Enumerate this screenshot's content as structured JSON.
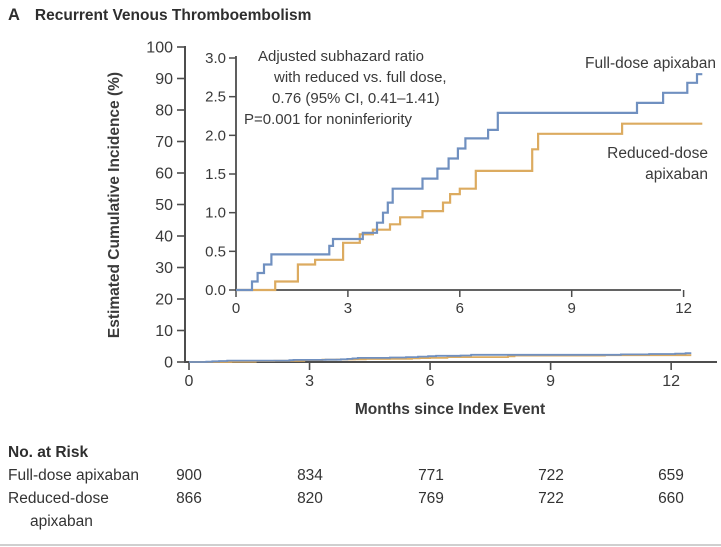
{
  "title": {
    "panel_label": "A",
    "text": "Recurrent Venous Thromboembolism"
  },
  "colors": {
    "full_dose": "#7090c0",
    "reduced_dose": "#dcab60",
    "axis": "#4d4d4d",
    "text": "#3a3a3a"
  },
  "annotation": {
    "line1": "Adjusted subhazard ratio",
    "line2": "with reduced vs. full dose,",
    "line3": "0.76 (95% CI, 0.41–1.41)",
    "line4": "P=0.001 for noninferiority"
  },
  "legend": {
    "full_dose": "Full-dose apixaban",
    "reduced_dose_line1": "Reduced-dose",
    "reduced_dose_line2": "apixaban"
  },
  "chart_data": {
    "type": "line",
    "step": true,
    "title": "Recurrent Venous Thromboembolism",
    "xlabel": "Months since Index Event",
    "ylabel": "Estimated Cumulative Incidence (%)",
    "end_month": 12.5,
    "main_axis": {
      "xlim": [
        0,
        13.2
      ],
      "ylim": [
        0,
        100
      ],
      "xticks": [
        0,
        3,
        6,
        9,
        12
      ],
      "yticks": [
        0,
        10,
        20,
        30,
        40,
        50,
        60,
        70,
        80,
        90,
        100
      ]
    },
    "inset_axis": {
      "xlim": [
        0,
        12.6
      ],
      "ylim": [
        0,
        3.0
      ],
      "xticks": [
        0,
        3,
        6,
        9,
        12
      ],
      "ytick_labels": [
        "0.0",
        "0.5",
        "1.0",
        "1.5",
        "2.0",
        "2.5",
        "3.0"
      ]
    },
    "series": [
      {
        "name": "Full-dose apixaban",
        "color_key": "full_dose",
        "points": [
          [
            0,
            0
          ],
          [
            0.43,
            0.11
          ],
          [
            0.58,
            0.22
          ],
          [
            0.75,
            0.33
          ],
          [
            0.95,
            0.46
          ],
          [
            2.5,
            0.57
          ],
          [
            2.6,
            0.66
          ],
          [
            3.4,
            0.74
          ],
          [
            3.78,
            0.87
          ],
          [
            3.94,
            1.0
          ],
          [
            4.07,
            1.13
          ],
          [
            4.2,
            1.31
          ],
          [
            5.0,
            1.44
          ],
          [
            5.4,
            1.57
          ],
          [
            5.7,
            1.7
          ],
          [
            5.95,
            1.83
          ],
          [
            6.15,
            1.96
          ],
          [
            6.76,
            2.07
          ],
          [
            7.02,
            2.29
          ],
          [
            10.75,
            2.42
          ],
          [
            11.45,
            2.55
          ],
          [
            12.1,
            2.68
          ],
          [
            12.36,
            2.79
          ]
        ]
      },
      {
        "name": "Reduced-dose apixaban",
        "color_key": "reduced_dose",
        "points": [
          [
            0,
            0
          ],
          [
            1.05,
            0.11
          ],
          [
            1.66,
            0.33
          ],
          [
            2.12,
            0.39
          ],
          [
            2.87,
            0.61
          ],
          [
            3.32,
            0.72
          ],
          [
            3.67,
            0.78
          ],
          [
            4.13,
            0.85
          ],
          [
            4.4,
            0.94
          ],
          [
            5.0,
            1.02
          ],
          [
            5.55,
            1.13
          ],
          [
            5.74,
            1.24
          ],
          [
            6.0,
            1.31
          ],
          [
            6.43,
            1.54
          ],
          [
            7.94,
            1.82
          ],
          [
            8.1,
            2.02
          ],
          [
            10.35,
            2.15
          ]
        ]
      }
    ]
  },
  "risk_table": {
    "title": "No. at Risk",
    "timepoints": [
      0,
      3,
      6,
      9,
      12
    ],
    "rows": [
      {
        "label": "Full-dose apixaban",
        "label_line1": "Full-dose apixaban",
        "label_line2": "",
        "values": [
          900,
          834,
          771,
          722,
          659
        ]
      },
      {
        "label": "Reduced-dose apixaban",
        "label_line1": "Reduced-dose",
        "label_line2": "apixaban",
        "values": [
          866,
          820,
          769,
          722,
          660
        ]
      }
    ]
  }
}
